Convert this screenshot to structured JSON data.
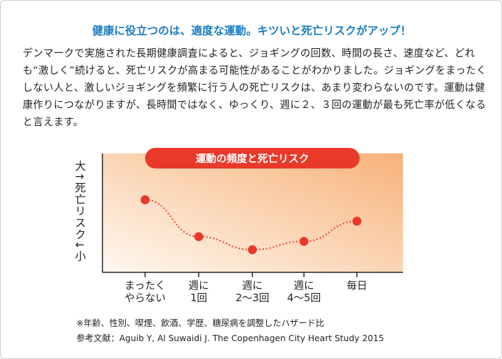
{
  "header": {
    "title": "健康に役立つのは、適度な運動。キツいと死亡リスクがアップ！"
  },
  "body": {
    "text": "デンマークで実施された長期健康調査によると、ジョギングの回数、時間の長さ、速度など、どれも“激しく”続けると、死亡リスクが高まる可能性があることがわかりました。ジョギングをまったくしない人と、激しいジョギングを頻繁に行う人の死亡リスクは、あまり変わらないのです。運動は健康作りにつながりますが、長時間ではなく、ゆっくり、週に２、３回の運動が最も死亡率が低くなると言えます。"
  },
  "chart_data": {
    "type": "line",
    "title": "運動の頻度と死亡リスク",
    "y_label": "大↑死亡リスク↓小",
    "categories": [
      "まったく\nやらない",
      "週に\n1回",
      "週に\n2〜3回",
      "週に\n4〜5回",
      "毎日"
    ],
    "values": [
      61,
      30,
      19,
      26,
      43
    ],
    "color": "#e8392a",
    "ylim": [
      0,
      100
    ]
  },
  "notes": {
    "lines": [
      "※年齢、性別、喫煙、飲酒、学歴、糖尿病を調整したハザード比",
      "参考文献：Aguib Y, Al Suwaidi J. The Copenhagen City Heart Study 2015"
    ]
  }
}
